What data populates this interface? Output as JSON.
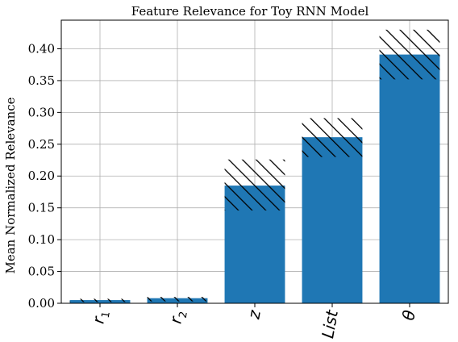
{
  "chart_data": {
    "type": "bar",
    "title": "Feature Relevance for Toy RNN Model",
    "xlabel": "",
    "ylabel": "Mean Normalized Relevance",
    "categories": [
      {
        "base": "r",
        "sub": "1"
      },
      {
        "base": "r",
        "sub": "2"
      },
      {
        "base": "z",
        "sub": ""
      },
      {
        "base": "List",
        "sub": ""
      },
      {
        "base": "θ",
        "sub": ""
      }
    ],
    "values": [
      0.005,
      0.008,
      0.185,
      0.261,
      0.391
    ],
    "error_low": [
      0.002,
      0.003,
      0.146,
      0.23,
      0.352
    ],
    "error_high": [
      0.007,
      0.01,
      0.226,
      0.291,
      0.43
    ],
    "ylim": [
      0,
      0.445
    ],
    "yticks": [
      0.0,
      0.05,
      0.1,
      0.15,
      0.2,
      0.25,
      0.3,
      0.35,
      0.4
    ],
    "grid": true,
    "bar_color": "#1f77b4",
    "error_hatch_color": "#000000"
  }
}
